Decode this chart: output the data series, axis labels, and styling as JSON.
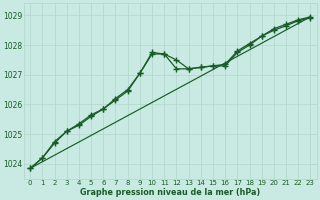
{
  "bg_color": "#c8eae2",
  "grid_color": "#b0d4ca",
  "line_color": "#1a5c28",
  "text_color": "#1a5c28",
  "xlabel": "Graphe pression niveau de la mer (hPa)",
  "xlim": [
    -0.5,
    23.5
  ],
  "ylim": [
    1023.5,
    1029.4
  ],
  "yticks": [
    1024,
    1025,
    1026,
    1027,
    1028,
    1029
  ],
  "xticks": [
    0,
    1,
    2,
    3,
    4,
    5,
    6,
    7,
    8,
    9,
    10,
    11,
    12,
    13,
    14,
    15,
    16,
    17,
    18,
    19,
    20,
    21,
    22,
    23
  ],
  "series1_x": [
    0,
    1,
    2,
    3,
    4,
    5,
    6,
    7,
    8,
    9,
    10,
    11,
    12,
    13,
    14,
    15,
    16,
    17,
    18,
    19,
    20,
    21,
    22,
    23
  ],
  "series1_y": [
    1023.85,
    1024.2,
    1024.7,
    1025.1,
    1025.35,
    1025.65,
    1025.85,
    1026.2,
    1026.5,
    1027.05,
    1027.7,
    1027.7,
    1027.2,
    1027.2,
    1027.25,
    1027.3,
    1027.35,
    1027.8,
    1028.05,
    1028.3,
    1028.55,
    1028.7,
    1028.85,
    1028.95
  ],
  "series2_x": [
    0,
    1,
    2,
    3,
    4,
    5,
    6,
    7,
    8,
    9,
    10,
    11,
    12,
    13,
    14,
    15,
    16,
    17,
    18,
    19,
    20,
    21,
    22,
    23
  ],
  "series2_y": [
    1023.85,
    1024.2,
    1024.75,
    1025.1,
    1025.3,
    1025.6,
    1025.85,
    1026.15,
    1026.45,
    1027.05,
    1027.75,
    1027.7,
    1027.5,
    1027.2,
    1027.25,
    1027.3,
    1027.3,
    1027.75,
    1028.0,
    1028.3,
    1028.5,
    1028.65,
    1028.82,
    1028.92
  ],
  "trend_x": [
    0,
    23
  ],
  "trend_y": [
    1023.85,
    1028.95
  ]
}
